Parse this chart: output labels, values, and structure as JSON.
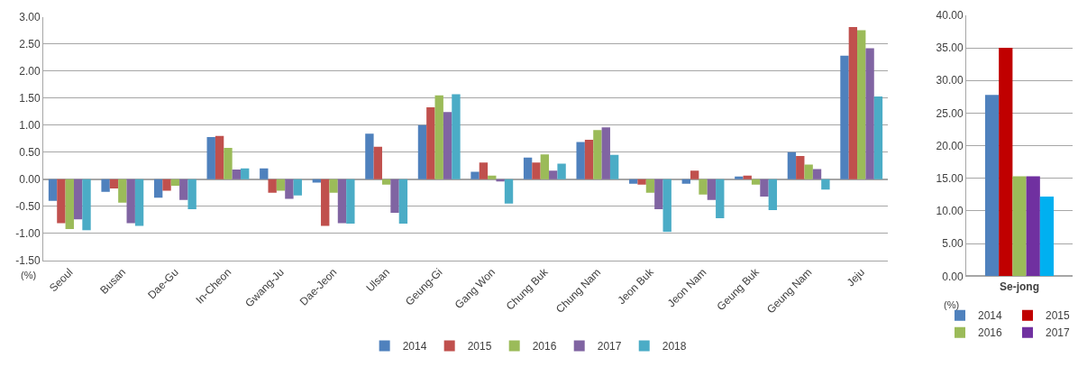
{
  "chart_data": [
    {
      "type": "bar",
      "ylabel": "(%)",
      "grid": "y",
      "legend": "bottom",
      "categories": [
        "Seoul",
        "Busan",
        "Dae-Gu",
        "In-Cheon",
        "Gwang-Ju",
        "Dae-Jeon",
        "Ulsan",
        "Geung-Gi",
        "Gang Won",
        "Chung Buk",
        "Chung Nam",
        "Jeon Buk",
        "Jeon Nam",
        "Geung Buk",
        "Geung Nam",
        "Jeju"
      ],
      "ylim": [
        -1.5,
        3.0
      ],
      "yticks": [
        {
          "value": 3.0,
          "label": "3.00"
        },
        {
          "value": 2.5,
          "label": "2.50"
        },
        {
          "value": 2.0,
          "label": "2.00"
        },
        {
          "value": 1.5,
          "label": "1.50"
        },
        {
          "value": 1.0,
          "label": "1.00"
        },
        {
          "value": 0.5,
          "label": "0.50"
        },
        {
          "value": 0.0,
          "label": "0.00"
        },
        {
          "value": -0.5,
          "label": "-0.50"
        },
        {
          "value": -1.0,
          "label": "-1.00"
        },
        {
          "value": -1.5,
          "label": "-1.50"
        }
      ],
      "series": [
        {
          "name": "2014",
          "color": "#4f81bd",
          "values": [
            -0.4,
            -0.23,
            -0.34,
            0.78,
            0.2,
            -0.06,
            0.84,
            1.0,
            0.14,
            0.4,
            0.69,
            -0.08,
            -0.08,
            0.05,
            0.5,
            2.28
          ]
        },
        {
          "name": "2015",
          "color": "#c0504d",
          "values": [
            -0.81,
            -0.17,
            -0.21,
            0.8,
            -0.25,
            -0.86,
            0.6,
            1.33,
            0.31,
            0.31,
            0.73,
            -0.1,
            0.16,
            0.07,
            0.43,
            2.81
          ]
        },
        {
          "name": "2016",
          "color": "#9bbb59",
          "values": [
            -0.92,
            -0.43,
            -0.12,
            0.58,
            -0.21,
            -0.25,
            -0.1,
            1.55,
            0.07,
            0.46,
            0.91,
            -0.25,
            -0.28,
            -0.1,
            0.27,
            2.75
          ]
        },
        {
          "name": "2017",
          "color": "#8064a2",
          "values": [
            -0.74,
            -0.81,
            -0.38,
            0.18,
            -0.36,
            -0.81,
            -0.62,
            1.24,
            -0.04,
            0.16,
            0.96,
            -0.55,
            -0.38,
            -0.32,
            0.19,
            2.42
          ]
        },
        {
          "name": "2018",
          "color": "#4bacc6",
          "values": [
            -0.94,
            -0.86,
            -0.55,
            0.2,
            -0.3,
            -0.82,
            -0.82,
            1.57,
            -0.45,
            0.29,
            0.45,
            -0.97,
            -0.72,
            -0.57,
            -0.19,
            1.53
          ]
        }
      ]
    },
    {
      "type": "bar",
      "ylabel": "(%)",
      "grid": "y",
      "legend": "bottom",
      "categories": [
        "Se-jong"
      ],
      "ylim": [
        0,
        40
      ],
      "yticks": [
        {
          "value": 0,
          "label": "0.00"
        },
        {
          "value": 5,
          "label": "5.00"
        },
        {
          "value": 10,
          "label": "10.00"
        },
        {
          "value": 15,
          "label": "15.00"
        },
        {
          "value": 20,
          "label": "20.00"
        },
        {
          "value": 25,
          "label": "25.00"
        },
        {
          "value": 30,
          "label": "30.00"
        },
        {
          "value": 35,
          "label": "35.00"
        },
        {
          "value": 40,
          "label": "40.00"
        }
      ],
      "series": [
        {
          "name": "2014",
          "color": "#4f81bd",
          "values": [
            27.8
          ]
        },
        {
          "name": "2015",
          "color": "#c00000",
          "values": [
            35.0
          ]
        },
        {
          "name": "2016",
          "color": "#9bbb59",
          "values": [
            15.3
          ]
        },
        {
          "name": "2017",
          "color": "#7030a0",
          "values": [
            15.3
          ]
        },
        {
          "color": "#00b0f0",
          "values": [
            12.2
          ]
        }
      ]
    }
  ]
}
